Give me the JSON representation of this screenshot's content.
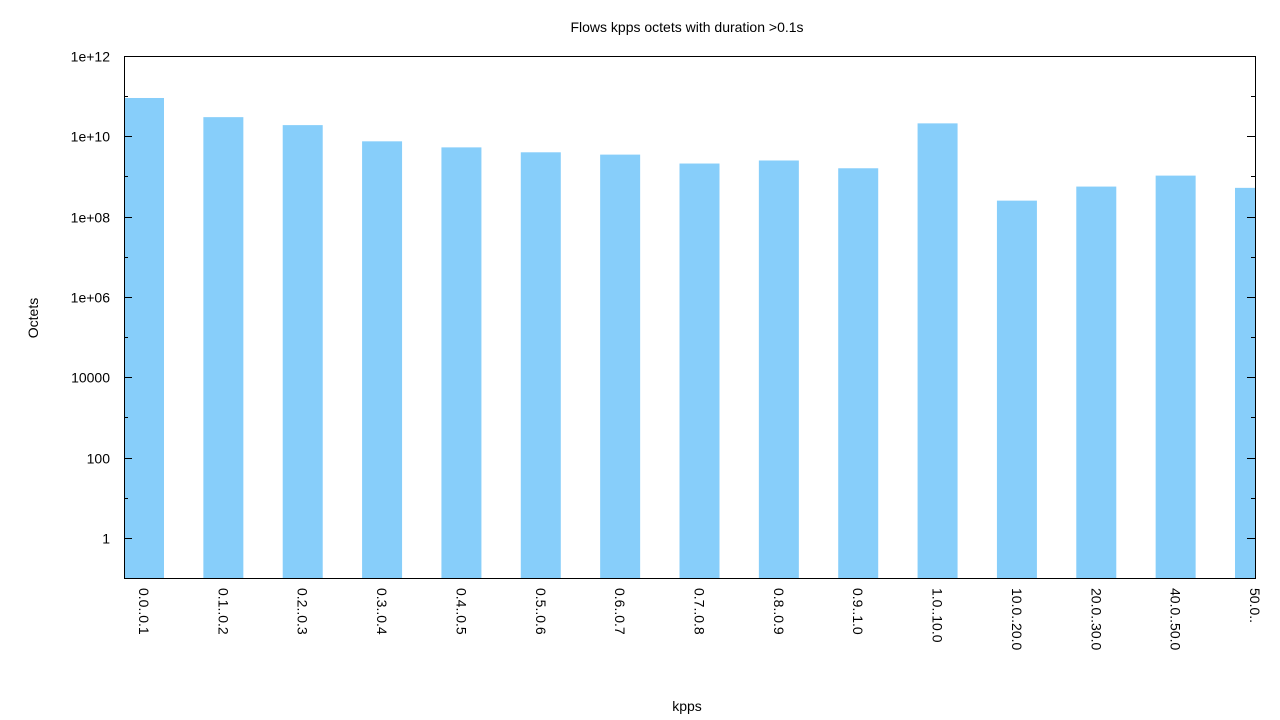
{
  "chart_data": {
    "type": "bar",
    "title": "Flows kpps octets with duration >0.1s",
    "xlabel": "kpps",
    "ylabel": "Octets",
    "yscale": "log10",
    "ylim": [
      0.1,
      1000000000000
    ],
    "yticks": [
      {
        "value": 1,
        "label": "1"
      },
      {
        "value": 100,
        "label": "100"
      },
      {
        "value": 10000,
        "label": "10000"
      },
      {
        "value": 1000000,
        "label": "1e+06"
      },
      {
        "value": 100000000,
        "label": "1e+08"
      },
      {
        "value": 10000000000,
        "label": "1e+10"
      },
      {
        "value": 1000000000000,
        "label": "1e+12"
      }
    ],
    "grid": false,
    "legend": "none",
    "bar_color": "#87CEFA",
    "axis_color": "#000000",
    "categories": [
      "0.0..0.1",
      "0.1..0.2",
      "0.2..0.3",
      "0.3..0.4",
      "0.4..0.5",
      "0.5..0.6",
      "0.6..0.7",
      "0.7..0.8",
      "0.8..0.9",
      "0.9..1.0",
      "1.0..10.0",
      "10.0..20.0",
      "20.0..30.0",
      "40.0..50.0",
      "50.0.."
    ],
    "values": [
      90000000000,
      30000000000,
      19000000000,
      7500000000,
      5300000000,
      4000000000,
      3500000000,
      2100000000,
      2500000000,
      1600000000,
      21000000000,
      250000000,
      560000000,
      1050000000,
      520000000
    ]
  }
}
